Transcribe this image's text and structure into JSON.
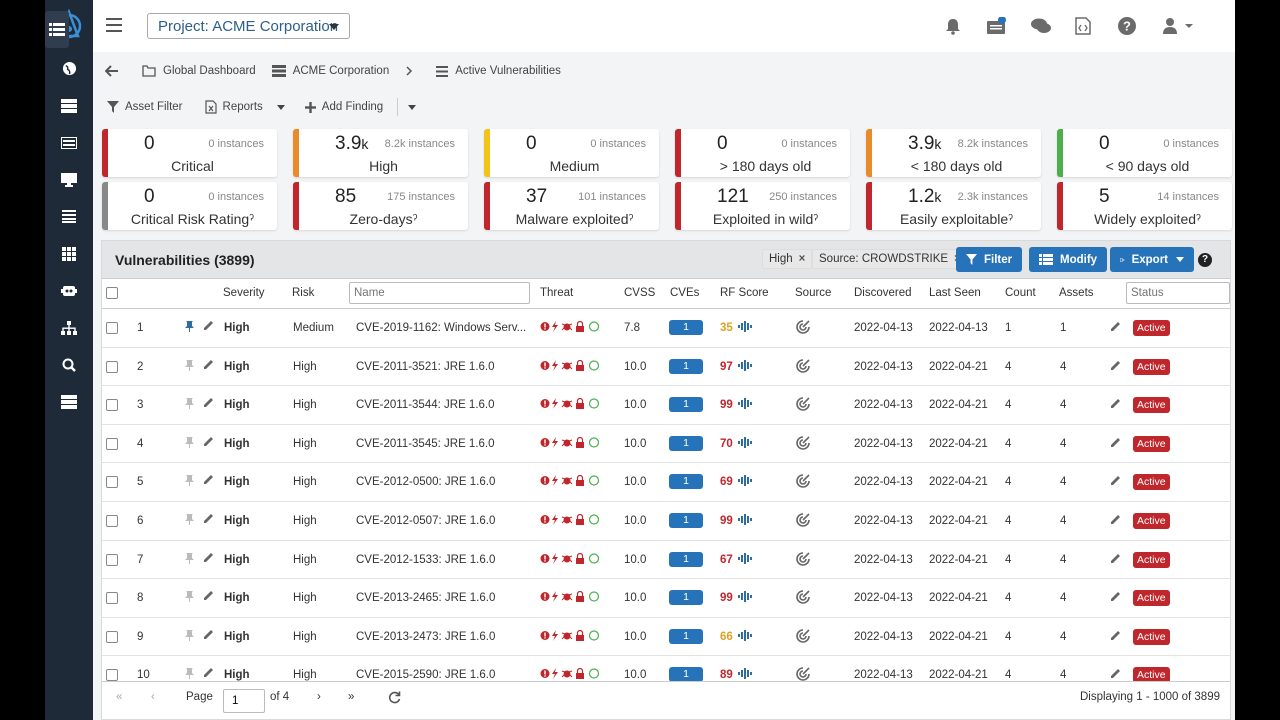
{
  "project": {
    "label": "Project: ACME Corporation"
  },
  "breadcrumbs": [
    "Global Dashboard",
    "ACME Corporation",
    "Active Vulnerabilities"
  ],
  "toolbar": {
    "asset_filter": "Asset Filter",
    "reports": "Reports",
    "add_finding": "Add Finding"
  },
  "cards": [
    {
      "value": "0",
      "unit": "",
      "instances": "0 instances",
      "label": "Critical",
      "color": "#c0272d"
    },
    {
      "value": "3.9",
      "unit": "k",
      "instances": "8.2k instances",
      "label": "High",
      "color": "#e98a2b"
    },
    {
      "value": "0",
      "unit": "",
      "instances": "0 instances",
      "label": "Medium",
      "color": "#f0c419"
    },
    {
      "value": "0",
      "unit": "",
      "instances": "0 instances",
      "label": "> 180 days old",
      "color": "#c0272d"
    },
    {
      "value": "3.9",
      "unit": "k",
      "instances": "8.2k instances",
      "label": "< 180 days old",
      "color": "#e98a2b"
    },
    {
      "value": "0",
      "unit": "",
      "instances": "0 instances",
      "label": "< 90 days old",
      "color": "#4cae4c"
    },
    {
      "value": "0",
      "unit": "",
      "instances": "0 instances",
      "label": "Critical Risk Ratingˀ",
      "color": "#888888"
    },
    {
      "value": "85",
      "unit": "",
      "instances": "175 instances",
      "label": "Zero-daysˀ",
      "color": "#c0272d"
    },
    {
      "value": "37",
      "unit": "",
      "instances": "101 instances",
      "label": "Malware exploitedˀ",
      "color": "#c0272d"
    },
    {
      "value": "121",
      "unit": "",
      "instances": "250 instances",
      "label": "Exploited in wildˀ",
      "color": "#c0272d"
    },
    {
      "value": "1.2",
      "unit": "k",
      "instances": "2.3k instances",
      "label": "Easily exploitableˀ",
      "color": "#c0272d"
    },
    {
      "value": "5",
      "unit": "",
      "instances": "14 instances",
      "label": "Widely exploitedˀ",
      "color": "#c0272d"
    }
  ],
  "grid": {
    "title": "Vulnerabilities (3899)",
    "chips": [
      "High",
      "Source: CROWDSTRIKE"
    ],
    "buttons": {
      "filter": "Filter",
      "modify": "Modify",
      "export": "Export"
    },
    "help": "?",
    "columns": {
      "severity": "Severity",
      "risk": "Risk",
      "name_placeholder": "Name",
      "threat": "Threat",
      "cvss": "CVSS",
      "cves": "CVEs",
      "rf_score": "RF Score",
      "source": "Source",
      "discovered": "Discovered",
      "last_seen": "Last Seen",
      "count": "Count",
      "assets": "Assets",
      "status_placeholder": "Status"
    },
    "rows": [
      {
        "num": "1",
        "severity": "High",
        "risk": "Medium",
        "name": "CVE-2019-1162: Windows Serv...",
        "cvss": "7.8",
        "cves": "1",
        "rf": "35",
        "rf_color": "#e0a020",
        "discovered": "2022-04-13",
        "last_seen": "2022-04-13",
        "count": "1",
        "assets": "1",
        "status": "Active",
        "pinned": true
      },
      {
        "num": "2",
        "severity": "High",
        "risk": "High",
        "name": "CVE-2011-3521: JRE 1.6.0",
        "cvss": "10.0",
        "cves": "1",
        "rf": "97",
        "rf_color": "#c0272d",
        "discovered": "2022-04-13",
        "last_seen": "2022-04-21",
        "count": "4",
        "assets": "4",
        "status": "Active",
        "pinned": false
      },
      {
        "num": "3",
        "severity": "High",
        "risk": "High",
        "name": "CVE-2011-3544: JRE 1.6.0",
        "cvss": "10.0",
        "cves": "1",
        "rf": "99",
        "rf_color": "#c0272d",
        "discovered": "2022-04-13",
        "last_seen": "2022-04-21",
        "count": "4",
        "assets": "4",
        "status": "Active",
        "pinned": false
      },
      {
        "num": "4",
        "severity": "High",
        "risk": "High",
        "name": "CVE-2011-3545: JRE 1.6.0",
        "cvss": "10.0",
        "cves": "1",
        "rf": "70",
        "rf_color": "#c0272d",
        "discovered": "2022-04-13",
        "last_seen": "2022-04-21",
        "count": "4",
        "assets": "4",
        "status": "Active",
        "pinned": false
      },
      {
        "num": "5",
        "severity": "High",
        "risk": "High",
        "name": "CVE-2012-0500: JRE 1.6.0",
        "cvss": "10.0",
        "cves": "1",
        "rf": "69",
        "rf_color": "#c0272d",
        "discovered": "2022-04-13",
        "last_seen": "2022-04-21",
        "count": "4",
        "assets": "4",
        "status": "Active",
        "pinned": false
      },
      {
        "num": "6",
        "severity": "High",
        "risk": "High",
        "name": "CVE-2012-0507: JRE 1.6.0",
        "cvss": "10.0",
        "cves": "1",
        "rf": "99",
        "rf_color": "#c0272d",
        "discovered": "2022-04-13",
        "last_seen": "2022-04-21",
        "count": "4",
        "assets": "4",
        "status": "Active",
        "pinned": false
      },
      {
        "num": "7",
        "severity": "High",
        "risk": "High",
        "name": "CVE-2012-1533: JRE 1.6.0",
        "cvss": "10.0",
        "cves": "1",
        "rf": "67",
        "rf_color": "#c0272d",
        "discovered": "2022-04-13",
        "last_seen": "2022-04-21",
        "count": "4",
        "assets": "4",
        "status": "Active",
        "pinned": false
      },
      {
        "num": "8",
        "severity": "High",
        "risk": "High",
        "name": "CVE-2013-2465: JRE 1.6.0",
        "cvss": "10.0",
        "cves": "1",
        "rf": "99",
        "rf_color": "#c0272d",
        "discovered": "2022-04-13",
        "last_seen": "2022-04-21",
        "count": "4",
        "assets": "4",
        "status": "Active",
        "pinned": false
      },
      {
        "num": "9",
        "severity": "High",
        "risk": "High",
        "name": "CVE-2013-2473: JRE 1.6.0",
        "cvss": "10.0",
        "cves": "1",
        "rf": "66",
        "rf_color": "#e0a020",
        "discovered": "2022-04-13",
        "last_seen": "2022-04-21",
        "count": "4",
        "assets": "4",
        "status": "Active",
        "pinned": false
      },
      {
        "num": "10",
        "severity": "High",
        "risk": "High",
        "name": "CVE-2015-2590: JRE 1.6.0",
        "cvss": "10.0",
        "cves": "1",
        "rf": "89",
        "rf_color": "#c0272d",
        "discovered": "2022-04-13",
        "last_seen": "2022-04-21",
        "count": "4",
        "assets": "4",
        "status": "Active",
        "pinned": false
      }
    ]
  },
  "pager": {
    "page_label": "Page",
    "page_value": "1",
    "of": "of 4",
    "display": "Displaying 1 - 1000 of 3899"
  },
  "colors": {
    "sidebar": "#1e2a38",
    "accent": "#2773b9",
    "danger": "#c0272d",
    "warning": "#e08a1f"
  }
}
